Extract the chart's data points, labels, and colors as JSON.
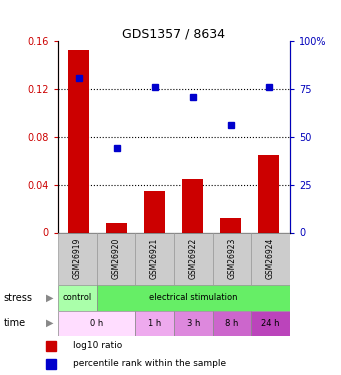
{
  "title": "GDS1357 / 8634",
  "categories": [
    "GSM26919",
    "GSM26920",
    "GSM26921",
    "GSM26922",
    "GSM26923",
    "GSM26924"
  ],
  "bar_values": [
    0.153,
    0.008,
    0.035,
    0.045,
    0.012,
    0.065
  ],
  "pct_values": [
    81,
    44,
    76,
    71,
    56,
    76
  ],
  "bar_color": "#cc0000",
  "scatter_color": "#0000cc",
  "ylim_left": [
    0,
    0.16
  ],
  "ylim_right": [
    0,
    100
  ],
  "yticks_left": [
    0,
    0.04,
    0.08,
    0.12,
    0.16
  ],
  "yticks_right": [
    0,
    25,
    50,
    75,
    100
  ],
  "ytick_labels_left": [
    "0",
    "0.04",
    "0.08",
    "0.12",
    "0.16"
  ],
  "ytick_labels_right": [
    "0",
    "25",
    "50",
    "75",
    "100%"
  ],
  "stress_data": [
    {
      "text": "control",
      "start": 0,
      "end": 1,
      "color": "#aaffaa"
    },
    {
      "text": "electrical stimulation",
      "start": 1,
      "end": 6,
      "color": "#66ee66"
    }
  ],
  "time_data": [
    {
      "text": "0 h",
      "start": 0,
      "end": 2,
      "color": "#ffddff"
    },
    {
      "text": "1 h",
      "start": 2,
      "end": 3,
      "color": "#eeaaee"
    },
    {
      "text": "3 h",
      "start": 3,
      "end": 4,
      "color": "#dd88dd"
    },
    {
      "text": "8 h",
      "start": 4,
      "end": 5,
      "color": "#cc66cc"
    },
    {
      "text": "24 h",
      "start": 5,
      "end": 6,
      "color": "#bb44bb"
    }
  ],
  "legend_items": [
    {
      "label": "log10 ratio",
      "color": "#cc0000"
    },
    {
      "label": "percentile rank within the sample",
      "color": "#0000cc"
    }
  ],
  "background_color": "#ffffff",
  "tick_color_left": "#cc0000",
  "tick_color_right": "#0000bb",
  "sample_box_color": "#cccccc",
  "sample_box_border": "#999999"
}
